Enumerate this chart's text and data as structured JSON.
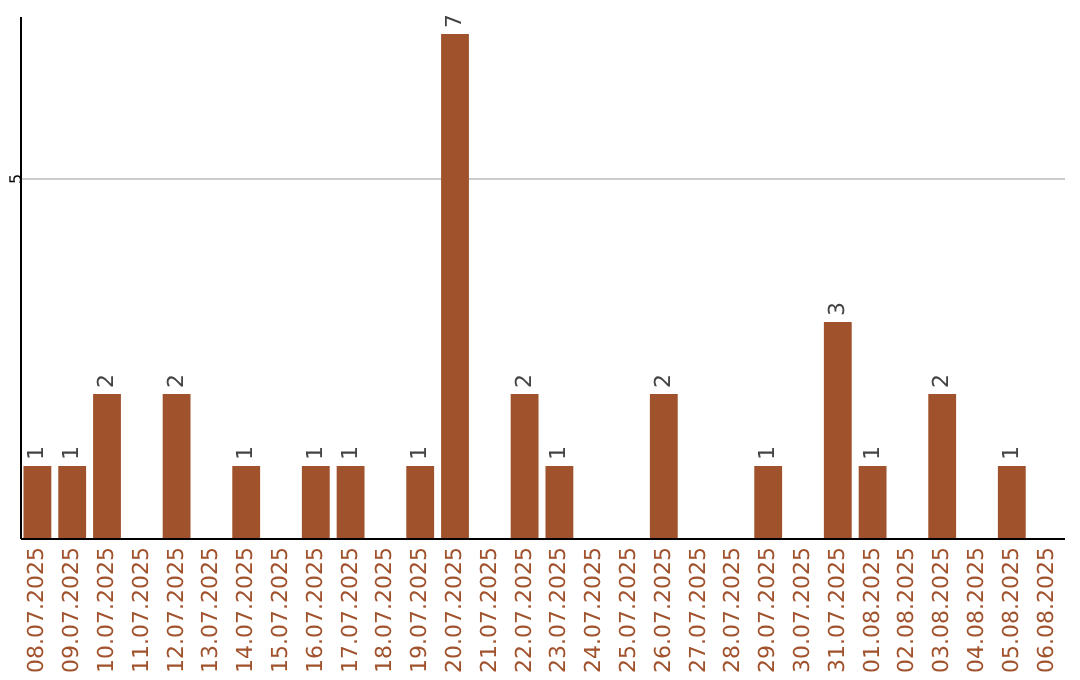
{
  "chart_data": {
    "type": "bar",
    "categories": [
      "08.07.2025",
      "09.07.2025",
      "10.07.2025",
      "11.07.2025",
      "12.07.2025",
      "13.07.2025",
      "14.07.2025",
      "15.07.2025",
      "16.07.2025",
      "17.07.2025",
      "18.07.2025",
      "19.07.2025",
      "20.07.2025",
      "21.07.2025",
      "22.07.2025",
      "23.07.2025",
      "24.07.2025",
      "25.07.2025",
      "26.07.2025",
      "27.07.2025",
      "28.07.2025",
      "29.07.2025",
      "30.07.2025",
      "31.07.2025",
      "01.08.2025",
      "02.08.2025",
      "03.08.2025",
      "04.08.2025",
      "05.08.2025",
      "06.08.2025"
    ],
    "values": [
      1,
      1,
      2,
      0,
      2,
      0,
      1,
      0,
      1,
      1,
      0,
      1,
      7,
      0,
      2,
      1,
      0,
      0,
      2,
      0,
      0,
      1,
      0,
      3,
      1,
      0,
      2,
      0,
      1,
      0
    ],
    "value_labels": [
      "1",
      "1",
      "2",
      null,
      "2",
      null,
      "1",
      null,
      "1",
      "1",
      null,
      "1",
      "7",
      null,
      "2",
      "1",
      null,
      null,
      "2",
      null,
      null,
      "1",
      null,
      "3",
      "1",
      null,
      "2",
      null,
      "1",
      null
    ],
    "color": "#a0522d",
    "ylim": [
      0,
      7.25
    ],
    "yticks": [
      5
    ],
    "grid": "y"
  }
}
